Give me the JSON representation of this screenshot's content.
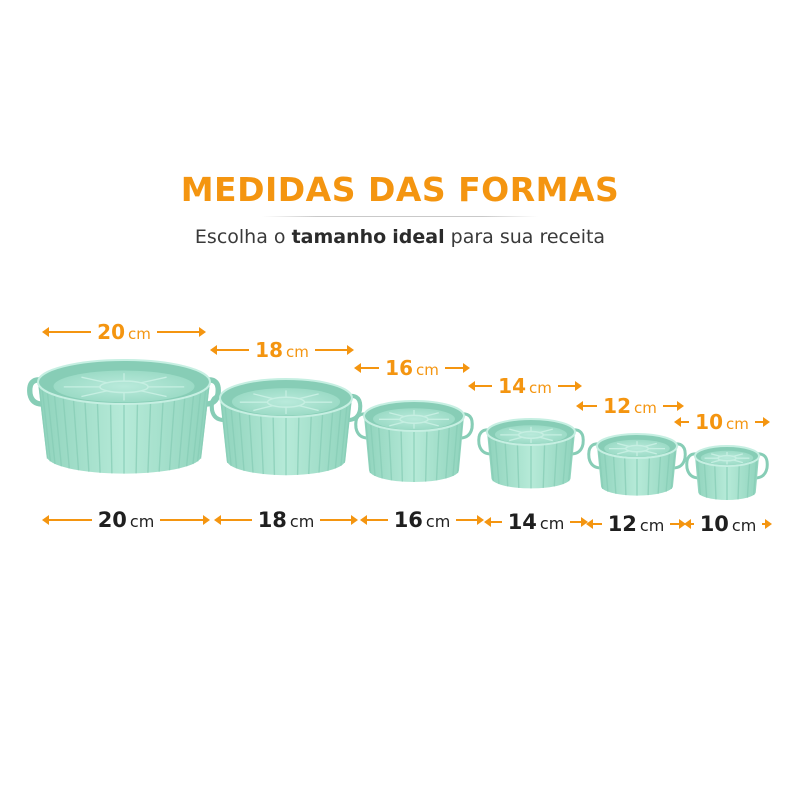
{
  "header": {
    "title": "MEDIDAS DAS FORMAS",
    "subtitle_parts": [
      "Escolha o ",
      "tamanho",
      " ",
      "ideal",
      " para sua receita"
    ]
  },
  "colors": {
    "accent": "#f49510",
    "basket": "#a9e3cf",
    "basket_dark": "#87cdb6",
    "basket_light": "#c6efe2",
    "text_dark": "#1f1f1f"
  },
  "baskets": [
    {
      "size": "20",
      "unit": "cm"
    },
    {
      "size": "18",
      "unit": "cm"
    },
    {
      "size": "16",
      "unit": "cm"
    },
    {
      "size": "14",
      "unit": "cm"
    },
    {
      "size": "12",
      "unit": "cm"
    },
    {
      "size": "10",
      "unit": "cm"
    }
  ]
}
